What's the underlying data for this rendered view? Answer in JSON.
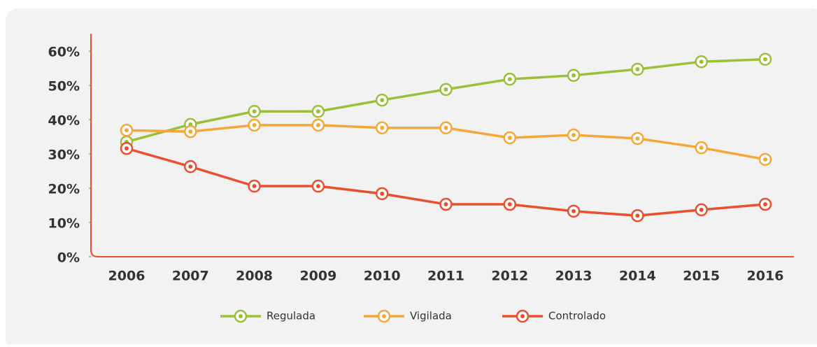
{
  "chart_data": {
    "type": "line",
    "categories": [
      "2006",
      "2007",
      "2008",
      "2009",
      "2010",
      "2011",
      "2012",
      "2013",
      "2014",
      "2015",
      "2016"
    ],
    "series": [
      {
        "name": "Regulada",
        "color": "#9cbf3a",
        "values": [
          33.5,
          38.6,
          42.4,
          42.4,
          45.7,
          48.8,
          51.8,
          52.9,
          54.7,
          56.9,
          57.6
        ]
      },
      {
        "name": "Vigilada",
        "color": "#f5a83a",
        "values": [
          36.9,
          36.5,
          38.4,
          38.4,
          37.6,
          37.6,
          34.7,
          35.5,
          34.5,
          31.8,
          28.4
        ]
      },
      {
        "name": "Controlado",
        "color": "#e9502f",
        "values": [
          31.6,
          26.3,
          20.6,
          20.6,
          18.4,
          15.3,
          15.3,
          13.3,
          12.0,
          13.7,
          15.3
        ]
      }
    ],
    "ylim": [
      0,
      65
    ],
    "yticks": [
      {
        "value": 0,
        "label": "0%"
      },
      {
        "value": 10,
        "label": "10%"
      },
      {
        "value": 20,
        "label": "20%"
      },
      {
        "value": 30,
        "label": "30%"
      },
      {
        "value": 40,
        "label": "40%"
      },
      {
        "value": 50,
        "label": "50%"
      },
      {
        "value": 60,
        "label": "60%"
      }
    ],
    "axis_color": "#e9502f",
    "legend": "bottom"
  }
}
